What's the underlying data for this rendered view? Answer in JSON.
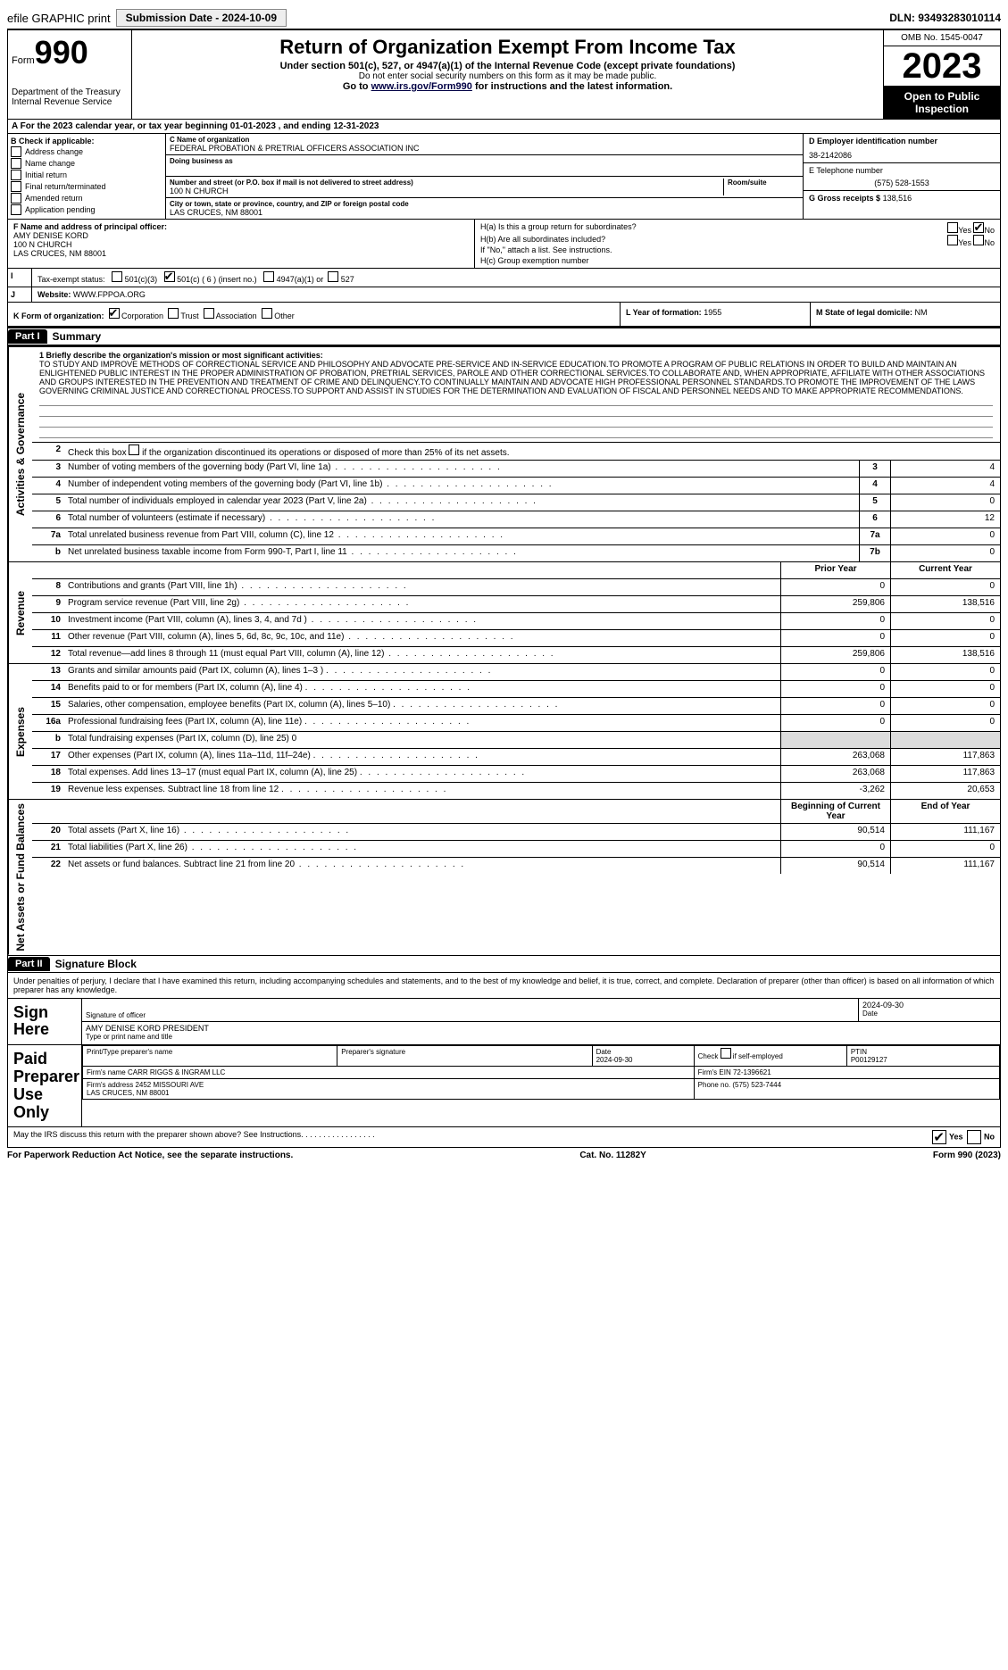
{
  "topbar": {
    "efile": "efile GRAPHIC print",
    "submission_label": "Submission Date - 2024-10-09",
    "dln": "DLN: 93493283010114"
  },
  "header": {
    "form_prefix": "Form",
    "form_number": "990",
    "dept": "Department of the Treasury",
    "irs": "Internal Revenue Service",
    "title": "Return of Organization Exempt From Income Tax",
    "subtitle": "Under section 501(c), 527, or 4947(a)(1) of the Internal Revenue Code (except private foundations)",
    "ssn_note": "Do not enter social security numbers on this form as it may be made public.",
    "goto_prefix": "Go to ",
    "goto_link": "www.irs.gov/Form990",
    "goto_suffix": " for instructions and the latest information.",
    "omb": "OMB No. 1545-0047",
    "year": "2023",
    "open": "Open to Public Inspection"
  },
  "lineA": "A For the 2023 calendar year, or tax year beginning 01-01-2023   , and ending 12-31-2023",
  "boxB": {
    "header": "B Check if applicable:",
    "items": [
      "Address change",
      "Name change",
      "Initial return",
      "Final return/terminated",
      "Amended return",
      "Application pending"
    ]
  },
  "boxC": {
    "name_lbl": "C Name of organization",
    "name": "FEDERAL PROBATION & PRETRIAL OFFICERS ASSOCIATION INC",
    "dba_lbl": "Doing business as",
    "addr_lbl": "Number and street (or P.O. box if mail is not delivered to street address)",
    "room_lbl": "Room/suite",
    "addr": "100 N CHURCH",
    "city_lbl": "City or town, state or province, country, and ZIP or foreign postal code",
    "city": "LAS CRUCES, NM  88001"
  },
  "boxD": {
    "lbl": "D Employer identification number",
    "val": "38-2142086"
  },
  "boxE": {
    "lbl": "E Telephone number",
    "val": "(575) 528-1553"
  },
  "boxG": {
    "lbl": "G Gross receipts $",
    "val": "138,516"
  },
  "boxF": {
    "lbl": "F Name and address of principal officer:",
    "name": "AMY DENISE KORD",
    "addr1": "100 N CHURCH",
    "addr2": "LAS CRUCES, NM  88001"
  },
  "boxH": {
    "a_lbl": "H(a)  Is this a group return for subordinates?",
    "b_lbl": "H(b)  Are all subordinates included?",
    "b_note": "If \"No,\" attach a list. See instructions.",
    "c_lbl": "H(c)  Group exemption number ",
    "yes": "Yes",
    "no": "No"
  },
  "boxI": {
    "lbl": "I",
    "text": "Tax-exempt status:",
    "opt1": "501(c)(3)",
    "opt2": "501(c) ( 6 ) (insert no.)",
    "opt3": "4947(a)(1) or",
    "opt4": "527"
  },
  "boxJ": {
    "lbl": "J",
    "text": "Website: ",
    "val": "WWW.FPPOA.ORG"
  },
  "boxK": {
    "lbl": "K Form of organization:",
    "opts": [
      "Corporation",
      "Trust",
      "Association",
      "Other"
    ]
  },
  "boxL": {
    "lbl": "L Year of formation: ",
    "val": "1955"
  },
  "boxM": {
    "lbl": "M State of legal domicile: ",
    "val": "NM"
  },
  "part1": {
    "hdr": "Part I",
    "title": "Summary"
  },
  "sections": {
    "ag": "Activities & Governance",
    "rev": "Revenue",
    "exp": "Expenses",
    "nab": "Net Assets or Fund Balances"
  },
  "line1": {
    "num": "1",
    "lbl": "Briefly describe the organization's mission or most significant activities:",
    "text": "TO STUDY AND IMPROVE METHODS OF CORRECTIONAL SERVICE AND PHILOSOPHY AND ADVOCATE PRE-SERVICE AND IN-SERVICE EDUCATION.TO PROMOTE A PROGRAM OF PUBLIC RELATIONS IN ORDER TO BUILD AND MAINTAIN AN ENLIGHTENED PUBLIC INTEREST IN THE PROPER ADMINISTRATION OF PROBATION, PRETRIAL SERVICES, PAROLE AND OTHER CORRECTIONAL SERVICES.TO COLLABORATE AND, WHEN APPROPRIATE, AFFILIATE WITH OTHER ASSOCIATIONS AND GROUPS INTERESTED IN THE PREVENTION AND TREATMENT OF CRIME AND DELINQUENCY.TO CONTINUALLY MAINTAIN AND ADVOCATE HIGH PROFESSIONAL PERSONNEL STANDARDS.TO PROMOTE THE IMPROVEMENT OF THE LAWS GOVERNING CRIMINAL JUSTICE AND CORRECTIONAL PROCESS.TO SUPPORT AND ASSIST IN STUDIES FOR THE DETERMINATION AND EVALUATION OF FISCAL AND PERSONNEL NEEDS AND TO MAKE APPROPRIATE RECOMMENDATIONS."
  },
  "line2": {
    "num": "2",
    "text": "Check this box       if the organization discontinued its operations or disposed of more than 25% of its net assets."
  },
  "ag_lines": [
    {
      "num": "3",
      "desc": "Number of voting members of the governing body (Part VI, line 1a)",
      "box": "3",
      "val": "4"
    },
    {
      "num": "4",
      "desc": "Number of independent voting members of the governing body (Part VI, line 1b)",
      "box": "4",
      "val": "4"
    },
    {
      "num": "5",
      "desc": "Total number of individuals employed in calendar year 2023 (Part V, line 2a)",
      "box": "5",
      "val": "0"
    },
    {
      "num": "6",
      "desc": "Total number of volunteers (estimate if necessary)",
      "box": "6",
      "val": "12"
    },
    {
      "num": "7a",
      "desc": "Total unrelated business revenue from Part VIII, column (C), line 12",
      "box": "7a",
      "val": "0"
    },
    {
      "num": "b",
      "desc": "Net unrelated business taxable income from Form 990-T, Part I, line 11",
      "box": "7b",
      "val": "0"
    }
  ],
  "col_hdrs": {
    "prior": "Prior Year",
    "current": "Current Year",
    "boy": "Beginning of Current Year",
    "eoy": "End of Year"
  },
  "rev_lines": [
    {
      "num": "8",
      "desc": "Contributions and grants (Part VIII, line 1h)",
      "prior": "0",
      "curr": "0"
    },
    {
      "num": "9",
      "desc": "Program service revenue (Part VIII, line 2g)",
      "prior": "259,806",
      "curr": "138,516"
    },
    {
      "num": "10",
      "desc": "Investment income (Part VIII, column (A), lines 3, 4, and 7d )",
      "prior": "0",
      "curr": "0"
    },
    {
      "num": "11",
      "desc": "Other revenue (Part VIII, column (A), lines 5, 6d, 8c, 9c, 10c, and 11e)",
      "prior": "0",
      "curr": "0"
    },
    {
      "num": "12",
      "desc": "Total revenue—add lines 8 through 11 (must equal Part VIII, column (A), line 12)",
      "prior": "259,806",
      "curr": "138,516"
    }
  ],
  "exp_lines": [
    {
      "num": "13",
      "desc": "Grants and similar amounts paid (Part IX, column (A), lines 1–3 )",
      "prior": "0",
      "curr": "0"
    },
    {
      "num": "14",
      "desc": "Benefits paid to or for members (Part IX, column (A), line 4)",
      "prior": "0",
      "curr": "0"
    },
    {
      "num": "15",
      "desc": "Salaries, other compensation, employee benefits (Part IX, column (A), lines 5–10)",
      "prior": "0",
      "curr": "0"
    },
    {
      "num": "16a",
      "desc": "Professional fundraising fees (Part IX, column (A), line 11e)",
      "prior": "0",
      "curr": "0"
    },
    {
      "num": "b",
      "desc": "Total fundraising expenses (Part IX, column (D), line 25) 0",
      "prior": "",
      "curr": "",
      "shade": true
    },
    {
      "num": "17",
      "desc": "Other expenses (Part IX, column (A), lines 11a–11d, 11f–24e)",
      "prior": "263,068",
      "curr": "117,863"
    },
    {
      "num": "18",
      "desc": "Total expenses. Add lines 13–17 (must equal Part IX, column (A), line 25)",
      "prior": "263,068",
      "curr": "117,863"
    },
    {
      "num": "19",
      "desc": "Revenue less expenses. Subtract line 18 from line 12",
      "prior": "-3,262",
      "curr": "20,653"
    }
  ],
  "nab_lines": [
    {
      "num": "20",
      "desc": "Total assets (Part X, line 16)",
      "prior": "90,514",
      "curr": "111,167"
    },
    {
      "num": "21",
      "desc": "Total liabilities (Part X, line 26)",
      "prior": "0",
      "curr": "0"
    },
    {
      "num": "22",
      "desc": "Net assets or fund balances. Subtract line 21 from line 20",
      "prior": "90,514",
      "curr": "111,167"
    }
  ],
  "part2": {
    "hdr": "Part II",
    "title": "Signature Block",
    "perjury": "Under penalties of perjury, I declare that I have examined this return, including accompanying schedules and statements, and to the best of my knowledge and belief, it is true, correct, and complete. Declaration of preparer (other than officer) is based on all information of which preparer has any knowledge."
  },
  "sign": {
    "here": "Sign Here",
    "sig_lbl": "Signature of officer",
    "date": "2024-09-30",
    "date_lbl": "Date",
    "name": "AMY DENISE KORD  PRESIDENT",
    "name_lbl": "Type or print name and title"
  },
  "paid": {
    "lbl": "Paid Preparer Use Only",
    "h1": "Print/Type preparer's name",
    "h2": "Preparer's signature",
    "h3": "Date",
    "h3v": "2024-09-30",
    "h4": "Check        if self-employed",
    "h5": "PTIN",
    "h5v": "P00129127",
    "firm_name_lbl": "Firm's name    ",
    "firm_name": "CARR RIGGS & INGRAM LLC",
    "firm_ein_lbl": "Firm's EIN  ",
    "firm_ein": "72-1396621",
    "firm_addr_lbl": "Firm's address ",
    "firm_addr1": "2452 MISSOURI AVE",
    "firm_addr2": "LAS CRUCES, NM  88001",
    "phone_lbl": "Phone no. ",
    "phone": "(575) 523-7444"
  },
  "discuss": {
    "text": "May the IRS discuss this return with the preparer shown above? See Instructions.",
    "yes": "Yes",
    "no": "No"
  },
  "footer": {
    "left": "For Paperwork Reduction Act Notice, see the separate instructions.",
    "mid": "Cat. No. 11282Y",
    "right": "Form 990 (2023)"
  },
  "colors": {
    "black": "#000000",
    "shade": "#dddddd"
  }
}
